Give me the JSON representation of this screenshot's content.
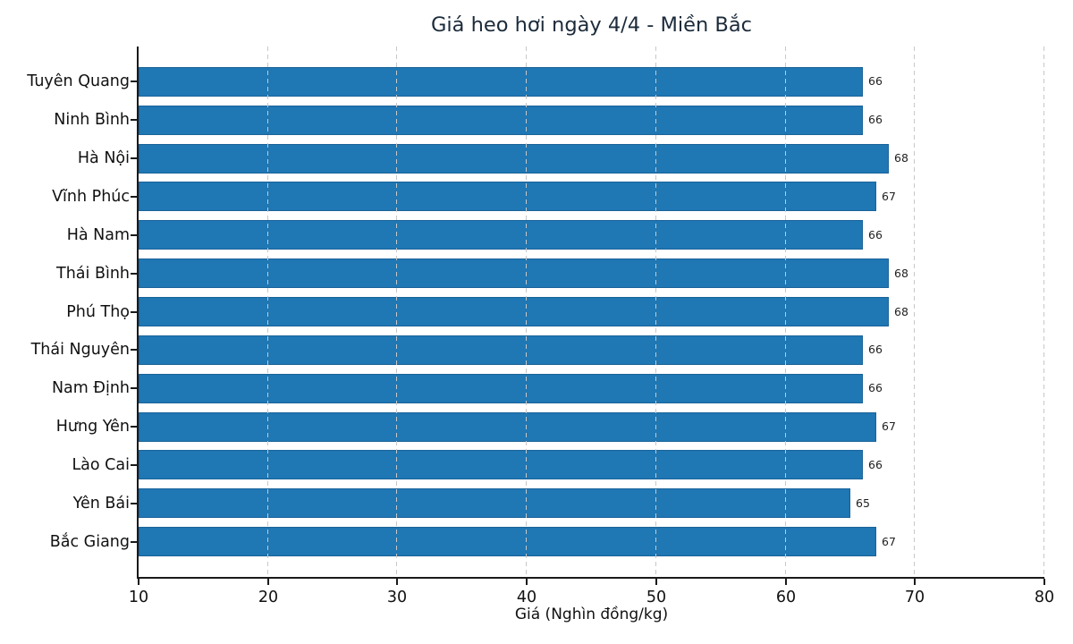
{
  "chart_data": {
    "type": "bar",
    "orientation": "horizontal",
    "title": "Giá heo hơi ngày 4/4 - Miền Bắc",
    "xlabel": "Giá (Nghìn đồng/kg)",
    "categories": [
      "Tuyên Quang",
      "Ninh Bình",
      "Hà Nội",
      "Vĩnh Phúc",
      "Hà Nam",
      "Thái Bình",
      "Phú Thọ",
      "Thái Nguyên",
      "Nam Định",
      "Hưng Yên",
      "Lào Cai",
      "Yên Bái",
      "Bắc Giang"
    ],
    "values": [
      66,
      66,
      68,
      67,
      66,
      68,
      68,
      66,
      66,
      67,
      66,
      65,
      67
    ],
    "xlim": [
      10,
      80
    ],
    "xticks": [
      10,
      20,
      30,
      40,
      50,
      60,
      70,
      80
    ],
    "grid": true,
    "grid_style": "dashed",
    "value_labels_shown": true,
    "legend": "none",
    "colors": {
      "bar_fill": "#1f77b4",
      "bar_edge": "#1a6399",
      "grid": "#c8c8c8",
      "axis": "#1a1a1a",
      "title": "#1c2b3a",
      "tick_label": "#111111",
      "value_label": "#1f1f1f"
    }
  }
}
